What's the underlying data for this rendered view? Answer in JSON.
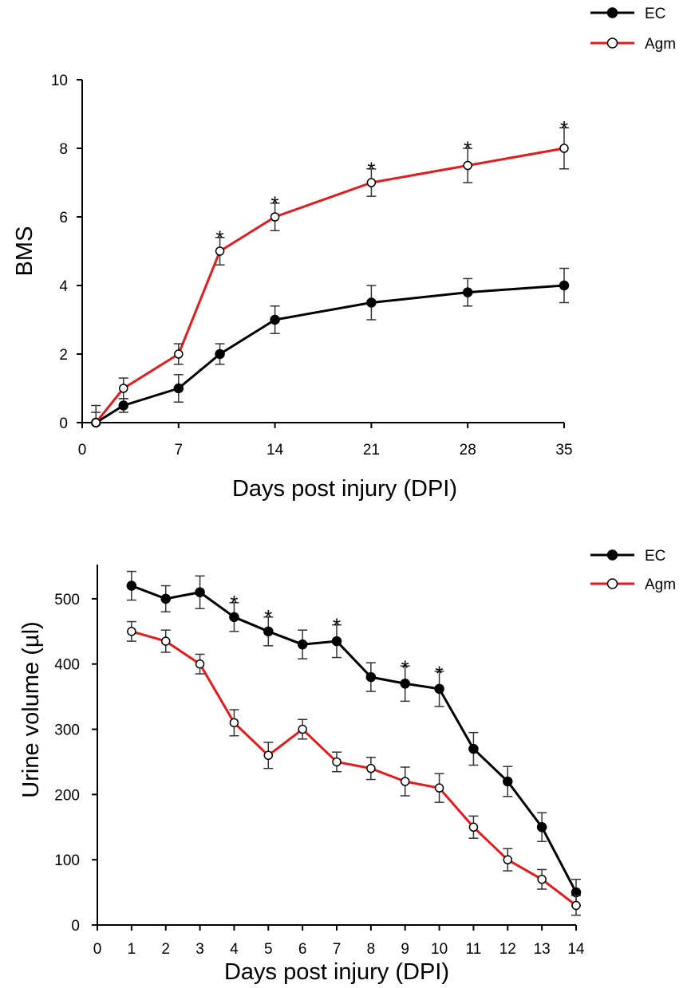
{
  "chart_data": [
    {
      "type": "line",
      "title": "",
      "xlabel": "Days post injury (DPI)",
      "ylabel": "BMS",
      "xlim": [
        0,
        35
      ],
      "ylim": [
        0,
        10
      ],
      "xticks": [
        "0",
        "7",
        "14",
        "21",
        "28",
        "35"
      ],
      "yticks": [
        "0",
        "2",
        "4",
        "6",
        "8",
        "10"
      ],
      "legend_position": "top-right",
      "grid": false,
      "series": [
        {
          "name": "EC",
          "color": "#000000",
          "marker": "filled-circle",
          "x": [
            1,
            3,
            7,
            10,
            14,
            21,
            28,
            35
          ],
          "y": [
            0,
            0.5,
            1.0,
            2.0,
            3.0,
            3.5,
            3.8,
            4.0
          ],
          "err": [
            0.5,
            0.2,
            0.4,
            0.3,
            0.4,
            0.5,
            0.4,
            0.5
          ]
        },
        {
          "name": "Agm",
          "color": "#e41a1c",
          "marker": "open-circle",
          "x": [
            1,
            3,
            7,
            10,
            14,
            21,
            28,
            35
          ],
          "y": [
            0,
            1.0,
            2.0,
            5.0,
            6.0,
            7.0,
            7.5,
            8.0
          ],
          "err": [
            0.3,
            0.3,
            0.3,
            0.4,
            0.4,
            0.4,
            0.5,
            0.6
          ]
        }
      ],
      "annotations": [
        {
          "text": "*",
          "x": 10,
          "y": 5.5
        },
        {
          "text": "*",
          "x": 14,
          "y": 6.5
        },
        {
          "text": "*",
          "x": 21,
          "y": 7.5
        },
        {
          "text": "*",
          "x": 28,
          "y": 8.1
        },
        {
          "text": "*",
          "x": 35,
          "y": 8.7
        }
      ]
    },
    {
      "type": "line",
      "title": "",
      "xlabel": "Days post injury (DPI)",
      "ylabel": "Urine volume (µl)",
      "xlim": [
        0,
        14
      ],
      "ylim": [
        0,
        550
      ],
      "xticks": [
        "0",
        "1",
        "2",
        "3",
        "4",
        "5",
        "6",
        "7",
        "8",
        "9",
        "10",
        "11",
        "12",
        "13",
        "14"
      ],
      "yticks": [
        "0",
        "100",
        "200",
        "300",
        "400",
        "500"
      ],
      "legend_position": "top-right",
      "grid": false,
      "series": [
        {
          "name": "EC",
          "color": "#000000",
          "marker": "filled-circle",
          "x": [
            1,
            2,
            3,
            4,
            5,
            6,
            7,
            8,
            9,
            10,
            11,
            12,
            13,
            14
          ],
          "y": [
            520,
            500,
            510,
            472,
            450,
            430,
            435,
            380,
            370,
            362,
            270,
            220,
            150,
            50
          ],
          "err": [
            22,
            20,
            25,
            22,
            22,
            22,
            25,
            22,
            27,
            27,
            25,
            23,
            22,
            20
          ]
        },
        {
          "name": "Agm",
          "color": "#e41a1c",
          "marker": "open-circle",
          "x": [
            1,
            2,
            3,
            4,
            5,
            6,
            7,
            8,
            9,
            10,
            11,
            12,
            13,
            14
          ],
          "y": [
            450,
            435,
            400,
            310,
            260,
            300,
            250,
            240,
            220,
            210,
            150,
            100,
            70,
            30
          ],
          "err": [
            15,
            17,
            15,
            20,
            20,
            15,
            15,
            17,
            22,
            22,
            17,
            17,
            15,
            15
          ]
        }
      ],
      "annotations": [
        {
          "text": "*",
          "x": 4,
          "y": 500
        },
        {
          "text": "*",
          "x": 5,
          "y": 478
        },
        {
          "text": "*",
          "x": 7,
          "y": 465
        },
        {
          "text": "*",
          "x": 9,
          "y": 400
        },
        {
          "text": "*",
          "x": 10,
          "y": 392
        }
      ]
    }
  ]
}
